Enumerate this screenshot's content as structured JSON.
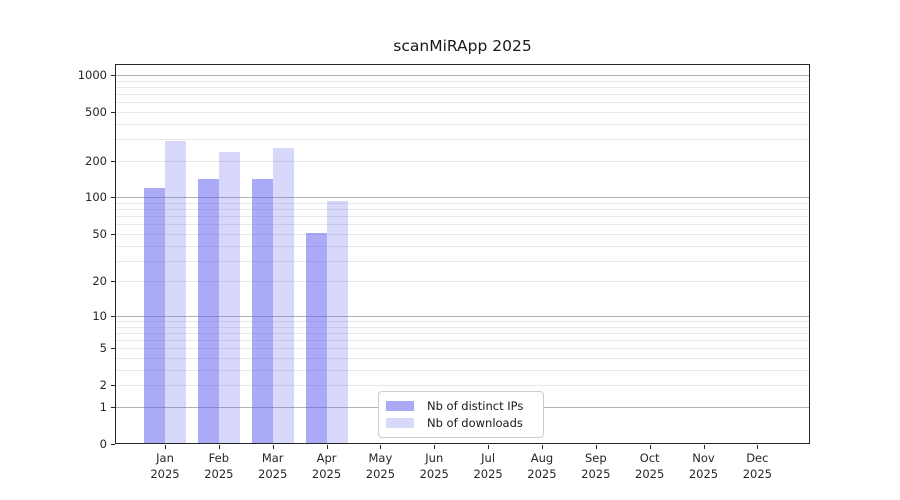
{
  "title": "scanMiRApp 2025",
  "chart_data": {
    "type": "bar",
    "title": "scanMiRApp 2025",
    "categories": [
      "Jan 2025",
      "Feb 2025",
      "Mar 2025",
      "Apr 2025",
      "May 2025",
      "Jun 2025",
      "Jul 2025",
      "Aug 2025",
      "Sep 2025",
      "Oct 2025",
      "Nov 2025",
      "Dec 2025"
    ],
    "series": [
      {
        "name": "Nb of distinct IPs",
        "values": [
          119,
          143,
          143,
          51,
          0,
          0,
          0,
          0,
          0,
          0,
          0,
          0
        ]
      },
      {
        "name": "Nb of downloads",
        "values": [
          291,
          235,
          255,
          93,
          0,
          0,
          0,
          0,
          0,
          0,
          0,
          0
        ]
      }
    ],
    "y_scale": "log1p",
    "y_ticks": [
      0,
      1,
      2,
      5,
      10,
      20,
      50,
      100,
      200,
      500,
      1000
    ],
    "ylim": [
      0,
      1228
    ],
    "xlabel": "",
    "ylabel": "",
    "grid": "horizontal, major decades darker + minor lines lighter",
    "legend_position": "lower-center"
  },
  "colors": {
    "ips_fill": "rgba(85,85,238,0.50)",
    "downloads_fill": "rgba(85,85,238,0.23)",
    "grid_major": "#b3b3b3",
    "grid_minor": "#e8e8e8",
    "spine": "#262626",
    "text": "#1a1a1a",
    "legend_border": "#cccccc"
  }
}
